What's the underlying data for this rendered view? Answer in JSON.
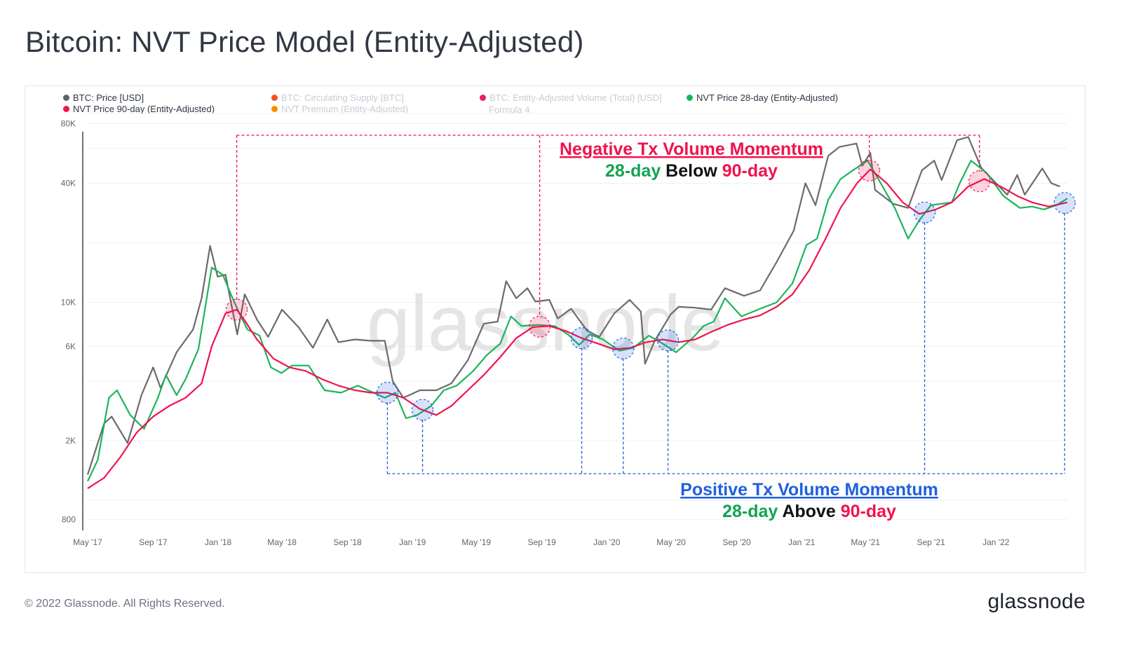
{
  "title": "Bitcoin: NVT Price Model (Entity-Adjusted)",
  "legend": [
    {
      "label": "BTC: Price [USD]",
      "color": "#5f6368",
      "active": true
    },
    {
      "label": "BTC: Circulating Supply [BTC]",
      "color": "#f4511e",
      "active": false
    },
    {
      "label": "BTC: Entity-Adjusted Volume (Total) [USD]",
      "color": "#e91e63",
      "active": false
    },
    {
      "label": "NVT Price 28-day (Entity-Adjusted)",
      "color": "#1db45a",
      "active": true
    },
    {
      "label": "NVT Price 90-day (Entity-Adjusted)",
      "color": "#f0134d",
      "active": true
    },
    {
      "label": "NVT Premium (Entity-Adjusted)",
      "color": "#fb8c00",
      "active": false
    },
    {
      "label": "Formula 4",
      "color": "",
      "active": false
    }
  ],
  "annotations": {
    "negative": {
      "heading": "Negative Tx Volume Momentum",
      "line2_a": "28-day",
      "line2_b": " Below ",
      "line2_c": "90-day"
    },
    "positive": {
      "heading": "Positive Tx Volume Momentum",
      "line2_a": "28-day",
      "line2_b": " Above ",
      "line2_c": "90-day"
    }
  },
  "watermark": "glassnode",
  "footer": {
    "copyright": "© 2022 Glassnode. All Rights Reserved.",
    "logo": "glassnode"
  },
  "colors": {
    "price": "#6b6b6b",
    "nvt28": "#1db45a",
    "nvt90": "#f0134d",
    "negative": "#f0134d",
    "positive": "#1f5fe0",
    "label_green": "#13a352",
    "label_black": "#111111",
    "label_pink": "#f0134d"
  },
  "chart_data": {
    "type": "line",
    "y_scale": "log",
    "ylim": [
      700,
      90000
    ],
    "y_ticks": [
      {
        "value": 80000,
        "label": "80K"
      },
      {
        "value": 40000,
        "label": "40K"
      },
      {
        "value": 10000,
        "label": "10K"
      },
      {
        "value": 6000,
        "label": "6K"
      },
      {
        "value": 2000,
        "label": "2K"
      },
      {
        "value": 800,
        "label": "800"
      }
    ],
    "x_ticks": [
      "May '17",
      "Sep '17",
      "Jan '18",
      "May '18",
      "Sep '18",
      "Jan '19",
      "May '19",
      "Sep '19",
      "Jan '20",
      "May '20",
      "Sep '20",
      "Jan '21",
      "May '21",
      "Sep '21",
      "Jan '22"
    ],
    "x_range": [
      "2017-05-01",
      "2022-05-15"
    ],
    "series": [
      {
        "name": "BTC: Price [USD]",
        "points": [
          [
            "2017-05-01",
            1350
          ],
          [
            "2017-06-01",
            2450
          ],
          [
            "2017-06-15",
            2650
          ],
          [
            "2017-07-15",
            1950
          ],
          [
            "2017-08-10",
            3400
          ],
          [
            "2017-09-01",
            4700
          ],
          [
            "2017-09-15",
            3700
          ],
          [
            "2017-10-15",
            5600
          ],
          [
            "2017-11-15",
            7300
          ],
          [
            "2017-12-01",
            10500
          ],
          [
            "2017-12-17",
            19300
          ],
          [
            "2017-12-31",
            13500
          ],
          [
            "2018-01-15",
            13800
          ],
          [
            "2018-02-06",
            6900
          ],
          [
            "2018-02-20",
            11000
          ],
          [
            "2018-03-15",
            8200
          ],
          [
            "2018-04-05",
            6700
          ],
          [
            "2018-05-01",
            9200
          ],
          [
            "2018-06-01",
            7500
          ],
          [
            "2018-06-28",
            5900
          ],
          [
            "2018-07-25",
            8200
          ],
          [
            "2018-08-15",
            6300
          ],
          [
            "2018-09-15",
            6500
          ],
          [
            "2018-10-15",
            6400
          ],
          [
            "2018-11-10",
            6400
          ],
          [
            "2018-11-25",
            4000
          ],
          [
            "2018-12-15",
            3300
          ],
          [
            "2019-01-15",
            3600
          ],
          [
            "2019-02-15",
            3600
          ],
          [
            "2019-03-15",
            3900
          ],
          [
            "2019-04-15",
            5100
          ],
          [
            "2019-05-15",
            7800
          ],
          [
            "2019-06-10",
            8000
          ],
          [
            "2019-06-26",
            12800
          ],
          [
            "2019-07-15",
            10500
          ],
          [
            "2019-08-05",
            11800
          ],
          [
            "2019-08-20",
            10100
          ],
          [
            "2019-09-15",
            10300
          ],
          [
            "2019-10-01",
            8300
          ],
          [
            "2019-10-26",
            9300
          ],
          [
            "2019-11-25",
            7200
          ],
          [
            "2019-12-18",
            6700
          ],
          [
            "2020-01-15",
            8800
          ],
          [
            "2020-02-13",
            10300
          ],
          [
            "2020-03-05",
            9000
          ],
          [
            "2020-03-13",
            4900
          ],
          [
            "2020-03-31",
            6400
          ],
          [
            "2020-04-30",
            8700
          ],
          [
            "2020-05-15",
            9500
          ],
          [
            "2020-06-15",
            9400
          ],
          [
            "2020-07-15",
            9200
          ],
          [
            "2020-08-10",
            11800
          ],
          [
            "2020-09-15",
            10800
          ],
          [
            "2020-10-15",
            11500
          ],
          [
            "2020-11-15",
            16000
          ],
          [
            "2020-12-17",
            23000
          ],
          [
            "2021-01-08",
            40000
          ],
          [
            "2021-01-27",
            31000
          ],
          [
            "2021-02-20",
            55000
          ],
          [
            "2021-03-13",
            61000
          ],
          [
            "2021-04-14",
            63500
          ],
          [
            "2021-04-25",
            49000
          ],
          [
            "2021-05-10",
            57000
          ],
          [
            "2021-05-19",
            37000
          ],
          [
            "2021-06-22",
            31500
          ],
          [
            "2021-07-20",
            30000
          ],
          [
            "2021-08-15",
            46500
          ],
          [
            "2021-09-07",
            52000
          ],
          [
            "2021-09-21",
            41500
          ],
          [
            "2021-10-20",
            66000
          ],
          [
            "2021-11-10",
            68500
          ],
          [
            "2021-12-04",
            48000
          ],
          [
            "2022-01-22",
            35000
          ],
          [
            "2022-02-10",
            44000
          ],
          [
            "2022-02-24",
            35000
          ],
          [
            "2022-03-29",
            47500
          ],
          [
            "2022-04-15",
            40000
          ],
          [
            "2022-05-01",
            38500
          ]
        ]
      },
      {
        "name": "NVT Price 28-day (Entity-Adjusted)",
        "points": [
          [
            "2017-05-01",
            1250
          ],
          [
            "2017-05-20",
            1600
          ],
          [
            "2017-06-10",
            3300
          ],
          [
            "2017-06-25",
            3600
          ],
          [
            "2017-07-20",
            2700
          ],
          [
            "2017-08-15",
            2300
          ],
          [
            "2017-09-10",
            3300
          ],
          [
            "2017-09-25",
            4300
          ],
          [
            "2017-10-15",
            3400
          ],
          [
            "2017-11-01",
            4100
          ],
          [
            "2017-11-25",
            5800
          ],
          [
            "2017-12-20",
            15000
          ],
          [
            "2018-01-10",
            13800
          ],
          [
            "2018-01-25",
            11000
          ],
          [
            "2018-02-10",
            8800
          ],
          [
            "2018-02-25",
            7300
          ],
          [
            "2018-03-20",
            6800
          ],
          [
            "2018-04-10",
            4700
          ],
          [
            "2018-04-30",
            4400
          ],
          [
            "2018-05-20",
            4800
          ],
          [
            "2018-06-20",
            4800
          ],
          [
            "2018-07-20",
            3600
          ],
          [
            "2018-08-20",
            3500
          ],
          [
            "2018-09-20",
            3800
          ],
          [
            "2018-10-20",
            3500
          ],
          [
            "2018-11-10",
            3300
          ],
          [
            "2018-11-30",
            3500
          ],
          [
            "2018-12-20",
            2600
          ],
          [
            "2019-01-10",
            2700
          ],
          [
            "2019-02-05",
            3000
          ],
          [
            "2019-03-01",
            3600
          ],
          [
            "2019-03-25",
            3800
          ],
          [
            "2019-04-25",
            4500
          ],
          [
            "2019-05-20",
            5400
          ],
          [
            "2019-06-15",
            6200
          ],
          [
            "2019-07-05",
            8500
          ],
          [
            "2019-07-25",
            7600
          ],
          [
            "2019-08-25",
            7700
          ],
          [
            "2019-09-25",
            7600
          ],
          [
            "2019-10-20",
            6900
          ],
          [
            "2019-11-10",
            6100
          ],
          [
            "2019-11-30",
            6900
          ],
          [
            "2019-12-25",
            6500
          ],
          [
            "2020-01-25",
            5700
          ],
          [
            "2020-02-20",
            5900
          ],
          [
            "2020-03-20",
            6800
          ],
          [
            "2020-04-15",
            6200
          ],
          [
            "2020-05-10",
            5600
          ],
          [
            "2020-06-10",
            6600
          ],
          [
            "2020-07-01",
            7600
          ],
          [
            "2020-07-20",
            8000
          ],
          [
            "2020-08-10",
            10500
          ],
          [
            "2020-09-10",
            8500
          ],
          [
            "2020-10-15",
            9300
          ],
          [
            "2020-11-15",
            10000
          ],
          [
            "2020-12-15",
            12500
          ],
          [
            "2021-01-10",
            19500
          ],
          [
            "2021-01-30",
            21000
          ],
          [
            "2021-02-20",
            33000
          ],
          [
            "2021-03-15",
            42000
          ],
          [
            "2021-04-10",
            47000
          ],
          [
            "2021-05-05",
            52000
          ],
          [
            "2021-05-25",
            42000
          ],
          [
            "2021-06-25",
            30000
          ],
          [
            "2021-07-20",
            21000
          ],
          [
            "2021-08-10",
            26000
          ],
          [
            "2021-09-01",
            31000
          ],
          [
            "2021-10-10",
            32000
          ],
          [
            "2021-10-25",
            40000
          ],
          [
            "2021-11-15",
            52000
          ],
          [
            "2021-12-15",
            45000
          ],
          [
            "2022-01-15",
            34500
          ],
          [
            "2022-02-15",
            30000
          ],
          [
            "2022-03-10",
            30500
          ],
          [
            "2022-04-01",
            29500
          ],
          [
            "2022-04-25",
            31000
          ],
          [
            "2022-05-15",
            33500
          ]
        ]
      },
      {
        "name": "NVT Price 90-day (Entity-Adjusted)",
        "points": [
          [
            "2017-05-01",
            1150
          ],
          [
            "2017-06-01",
            1300
          ],
          [
            "2017-07-01",
            1650
          ],
          [
            "2017-08-01",
            2200
          ],
          [
            "2017-09-01",
            2650
          ],
          [
            "2017-10-01",
            3000
          ],
          [
            "2017-11-01",
            3300
          ],
          [
            "2017-12-01",
            3900
          ],
          [
            "2017-12-20",
            6000
          ],
          [
            "2018-01-15",
            8800
          ],
          [
            "2018-02-05",
            9200
          ],
          [
            "2018-02-20",
            8100
          ],
          [
            "2018-03-15",
            6500
          ],
          [
            "2018-04-15",
            5200
          ],
          [
            "2018-05-15",
            4700
          ],
          [
            "2018-06-15",
            4500
          ],
          [
            "2018-07-15",
            4100
          ],
          [
            "2018-08-15",
            3800
          ],
          [
            "2018-09-15",
            3600
          ],
          [
            "2018-10-15",
            3500
          ],
          [
            "2018-11-15",
            3500
          ],
          [
            "2018-12-15",
            3300
          ],
          [
            "2019-01-15",
            2900
          ],
          [
            "2019-02-15",
            2700
          ],
          [
            "2019-03-15",
            3000
          ],
          [
            "2019-04-15",
            3600
          ],
          [
            "2019-05-15",
            4300
          ],
          [
            "2019-06-15",
            5300
          ],
          [
            "2019-07-15",
            6600
          ],
          [
            "2019-08-15",
            7500
          ],
          [
            "2019-09-15",
            7600
          ],
          [
            "2019-10-15",
            7200
          ],
          [
            "2019-11-15",
            6600
          ],
          [
            "2019-12-15",
            6200
          ],
          [
            "2020-01-15",
            5800
          ],
          [
            "2020-02-15",
            5900
          ],
          [
            "2020-03-15",
            6300
          ],
          [
            "2020-04-15",
            6500
          ],
          [
            "2020-05-15",
            6300
          ],
          [
            "2020-06-15",
            6500
          ],
          [
            "2020-07-15",
            7100
          ],
          [
            "2020-08-15",
            7700
          ],
          [
            "2020-09-15",
            8200
          ],
          [
            "2020-10-15",
            8600
          ],
          [
            "2020-11-15",
            9500
          ],
          [
            "2020-12-15",
            11000
          ],
          [
            "2021-01-15",
            14500
          ],
          [
            "2021-02-15",
            21000
          ],
          [
            "2021-03-15",
            30000
          ],
          [
            "2021-04-15",
            40000
          ],
          [
            "2021-05-10",
            47000
          ],
          [
            "2021-06-10",
            40000
          ],
          [
            "2021-07-10",
            32000
          ],
          [
            "2021-08-10",
            28000
          ],
          [
            "2021-09-10",
            29500
          ],
          [
            "2021-10-10",
            32000
          ],
          [
            "2021-11-10",
            38500
          ],
          [
            "2021-12-10",
            42000
          ],
          [
            "2022-01-10",
            38500
          ],
          [
            "2022-02-10",
            34500
          ],
          [
            "2022-03-10",
            32000
          ],
          [
            "2022-04-10",
            30500
          ],
          [
            "2022-05-15",
            32000
          ]
        ]
      }
    ],
    "negative_crosses": [
      "2018-02-05",
      "2019-08-28",
      "2021-05-08",
      "2021-12-01"
    ],
    "positive_crosses": [
      "2018-11-15",
      "2019-01-20",
      "2019-11-15",
      "2020-02-01",
      "2020-04-25",
      "2021-08-20",
      "2022-05-10"
    ]
  }
}
